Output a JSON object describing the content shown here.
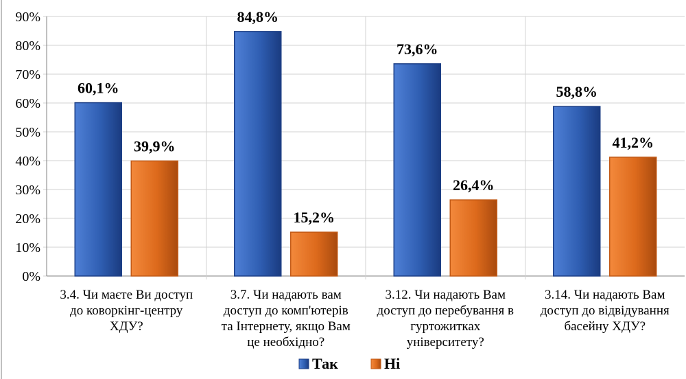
{
  "chart_data": {
    "type": "bar",
    "categories": [
      [
        "3.4. Чи маєте Ви доступ",
        "до коворкінг-центру",
        "ХДУ?"
      ],
      [
        "3.7. Чи надають вам",
        "доступ до комп'ютерів",
        "та Інтернету, якщо Вам",
        "це необхідно?"
      ],
      [
        "3.12. Чи надають Вам",
        "доступ до перебування в",
        "гуртожитках",
        "університету?"
      ],
      [
        "3.14. Чи надають Вам",
        "доступ до відвідування",
        "басейну ХДУ?"
      ]
    ],
    "series": [
      {
        "name": "Так",
        "values": [
          60.1,
          84.8,
          73.6,
          58.8
        ],
        "labels": [
          "60,1%",
          "84,8%",
          "73,6%",
          "58,8%"
        ],
        "color": "#2e5aa8"
      },
      {
        "name": "Ні",
        "values": [
          39.9,
          15.2,
          26.4,
          41.2
        ],
        "labels": [
          "39,9%",
          "15,2%",
          "26,4%",
          "41,2%"
        ],
        "color": "#e46c1c"
      }
    ],
    "yticks": [
      "0%",
      "10%",
      "20%",
      "30%",
      "40%",
      "50%",
      "60%",
      "70%",
      "80%",
      "90%"
    ],
    "ylim": [
      0,
      90
    ],
    "grid": true,
    "legend": "bottom"
  }
}
